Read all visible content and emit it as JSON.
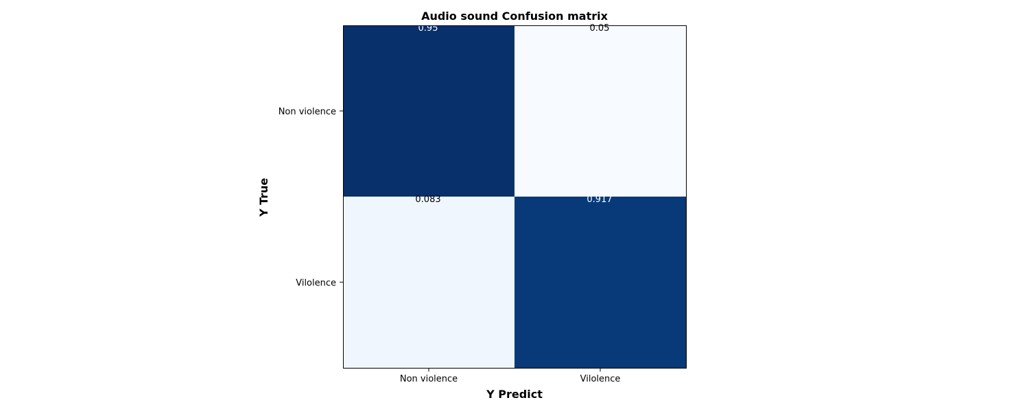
{
  "chart_data": {
    "type": "heatmap",
    "title": "Audio sound Confusion matrix",
    "xlabel": "Y Predict",
    "ylabel": "Y True",
    "x_categories": [
      "Non violence",
      "Vilolence"
    ],
    "y_categories": [
      "Non violence",
      "Vilolence"
    ],
    "values": [
      [
        0.95,
        0.05
      ],
      [
        0.083,
        0.917
      ]
    ],
    "value_labels": [
      [
        "0.95",
        "0.05"
      ],
      [
        "0.083",
        "0.917"
      ]
    ],
    "colormap": "Blues",
    "vmin": 0.05,
    "vmax": 0.95,
    "colorbar": false
  },
  "colors": {
    "high": "#08306b",
    "low": "#f7fbff",
    "text_on_dark": "#ffffff",
    "text_on_light": "#000000"
  }
}
